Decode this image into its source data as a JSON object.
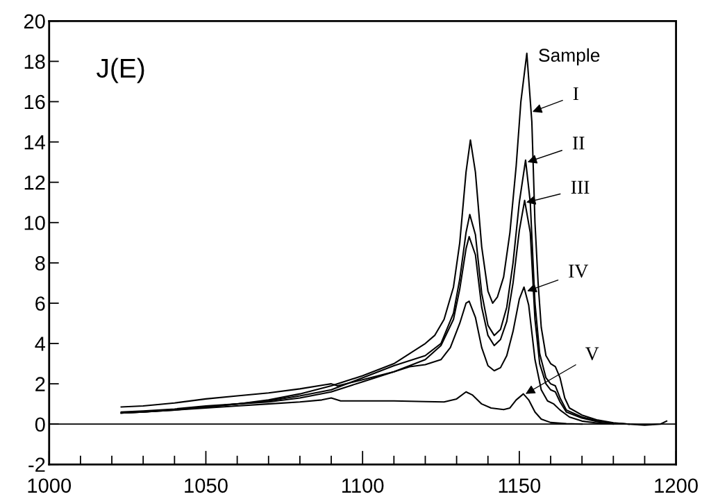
{
  "chart_data": {
    "type": "line",
    "annotations": [
      "J(E)",
      "Sample",
      {
        "text": "I",
        "x": 1154.2,
        "y": 15.5
      },
      {
        "text": "II",
        "x": 1152.6,
        "y": 13.0
      },
      {
        "text": "III",
        "x": 1152.2,
        "y": 11.0
      },
      {
        "text": "IV",
        "x": 1152.5,
        "y": 6.6
      },
      {
        "text": "V",
        "x": 1152,
        "y": 1.5
      }
    ],
    "series": [
      {
        "color": "#000000",
        "x": [
          1023,
          1030,
          1040,
          1050,
          1060,
          1070,
          1080,
          1090,
          1100,
          1110,
          1115,
          1120,
          1123,
          1126,
          1129,
          1131,
          1133,
          1134.4,
          1136,
          1138,
          1140,
          1141.5,
          1143,
          1145,
          1147,
          1149,
          1150.5,
          1152.4,
          1154,
          1155,
          1156,
          1157,
          1158.5,
          1160,
          1161.5,
          1163,
          1164.5,
          1166,
          1170,
          1175,
          1180,
          1185,
          1190,
          1195,
          1197
        ],
        "values": [
          0.55,
          0.6,
          0.7,
          0.85,
          1.0,
          1.2,
          1.5,
          1.9,
          2.4,
          3.0,
          3.5,
          4.0,
          4.4,
          5.2,
          6.8,
          9.0,
          12.5,
          14.1,
          12.5,
          8.8,
          6.6,
          6.0,
          6.3,
          7.3,
          9.5,
          12.8,
          16.0,
          18.4,
          15.0,
          10.0,
          7.0,
          4.8,
          3.4,
          3.0,
          2.85,
          2.3,
          1.3,
          0.8,
          0.45,
          0.2,
          0.07,
          0.0,
          -0.05,
          0.0,
          0.15
        ]
      },
      {
        "color": "#000000",
        "x": [
          1023,
          1030,
          1040,
          1050,
          1060,
          1070,
          1080,
          1090,
          1100,
          1110,
          1120,
          1125,
          1129,
          1131,
          1133,
          1134.2,
          1136,
          1138,
          1140,
          1142,
          1144,
          1146,
          1148,
          1150,
          1152,
          1153.5,
          1155,
          1156.5,
          1158.5,
          1160,
          1161.5,
          1163,
          1165,
          1170,
          1175,
          1180,
          1185
        ],
        "values": [
          0.55,
          0.6,
          0.72,
          0.85,
          1.0,
          1.15,
          1.4,
          1.7,
          2.3,
          2.9,
          3.4,
          4.0,
          5.5,
          7.2,
          9.5,
          10.4,
          9.4,
          6.5,
          4.9,
          4.4,
          4.7,
          5.8,
          8.0,
          11.0,
          13.1,
          11.0,
          6.0,
          3.5,
          2.3,
          2.0,
          1.9,
          1.3,
          0.7,
          0.35,
          0.15,
          0.05,
          0.0
        ]
      },
      {
        "color": "#000000",
        "x": [
          1023,
          1030,
          1040,
          1050,
          1060,
          1070,
          1080,
          1090,
          1100,
          1110,
          1120,
          1125,
          1129,
          1131,
          1133,
          1134,
          1136,
          1138,
          1140,
          1142,
          1144,
          1146,
          1148,
          1150,
          1151.7,
          1153.5,
          1155,
          1156.5,
          1158.5,
          1160,
          1161.5,
          1163,
          1165,
          1170,
          1175,
          1180,
          1185
        ],
        "values": [
          0.6,
          0.65,
          0.75,
          0.9,
          1.0,
          1.1,
          1.3,
          1.6,
          2.1,
          2.6,
          3.2,
          3.9,
          5.2,
          6.7,
          8.7,
          9.3,
          8.4,
          5.8,
          4.4,
          3.9,
          4.2,
          5.1,
          7.0,
          9.6,
          11.1,
          9.5,
          5.2,
          3.0,
          2.0,
          1.7,
          1.6,
          1.1,
          0.6,
          0.3,
          0.12,
          0.04,
          0.0
        ]
      },
      {
        "color": "#000000",
        "x": [
          1023,
          1030,
          1040,
          1050,
          1060,
          1070,
          1080,
          1088,
          1090,
          1092,
          1100,
          1110,
          1115,
          1120,
          1125,
          1128,
          1131,
          1133,
          1134,
          1136,
          1138,
          1140,
          1142,
          1144,
          1146,
          1148,
          1150,
          1151.5,
          1153,
          1155,
          1157,
          1159,
          1161,
          1163,
          1166,
          1170,
          1175,
          1180
        ],
        "values": [
          0.85,
          0.9,
          1.05,
          1.25,
          1.4,
          1.55,
          1.75,
          1.95,
          2.0,
          1.9,
          2.2,
          2.6,
          2.85,
          2.95,
          3.2,
          3.8,
          5.0,
          6.0,
          6.1,
          5.3,
          3.8,
          2.9,
          2.65,
          2.8,
          3.4,
          4.6,
          6.2,
          6.8,
          5.9,
          3.2,
          1.7,
          1.15,
          1.0,
          0.7,
          0.35,
          0.15,
          0.05,
          0.0
        ]
      },
      {
        "color": "#000000",
        "x": [
          1023,
          1030,
          1040,
          1050,
          1060,
          1070,
          1080,
          1087,
          1090,
          1093,
          1100,
          1110,
          1120,
          1126,
          1130,
          1133,
          1135,
          1138,
          1141,
          1145,
          1147,
          1149,
          1151.3,
          1153,
          1155,
          1157,
          1160,
          1165,
          1170
        ],
        "values": [
          0.55,
          0.6,
          0.7,
          0.8,
          0.9,
          1.0,
          1.1,
          1.2,
          1.3,
          1.15,
          1.15,
          1.15,
          1.12,
          1.1,
          1.25,
          1.6,
          1.45,
          1.0,
          0.8,
          0.72,
          0.8,
          1.2,
          1.5,
          1.2,
          0.6,
          0.25,
          0.08,
          0.02,
          0.0
        ]
      }
    ],
    "xlim": [
      1000,
      1200
    ],
    "xticks": [
      1000,
      {
        "value": 1010,
        "label": null
      },
      {
        "value": 1020,
        "label": null
      },
      {
        "value": 1030,
        "label": null
      },
      {
        "value": 1040,
        "label": null
      },
      1050,
      {
        "value": 1060,
        "label": null
      },
      {
        "value": 1070,
        "label": null
      },
      {
        "value": 1080,
        "label": null
      },
      {
        "value": 1090,
        "label": null
      },
      1100,
      {
        "value": 1110,
        "label": null
      },
      {
        "value": 1120,
        "label": null
      },
      {
        "value": 1130,
        "label": null
      },
      {
        "value": 1140,
        "label": null
      },
      1150,
      {
        "value": 1160,
        "label": null
      },
      {
        "value": 1170,
        "label": null
      },
      {
        "value": 1180,
        "label": null
      },
      {
        "value": 1190,
        "label": null
      },
      1200
    ],
    "ylim": [
      -2,
      20
    ],
    "yticks": [
      -2,
      0,
      2,
      4,
      6,
      8,
      10,
      12,
      14,
      16,
      18,
      20
    ],
    "ref_lines": [
      {
        "axis": "y",
        "value": 0,
        "color": "#000000"
      }
    ],
    "grid": false
  }
}
